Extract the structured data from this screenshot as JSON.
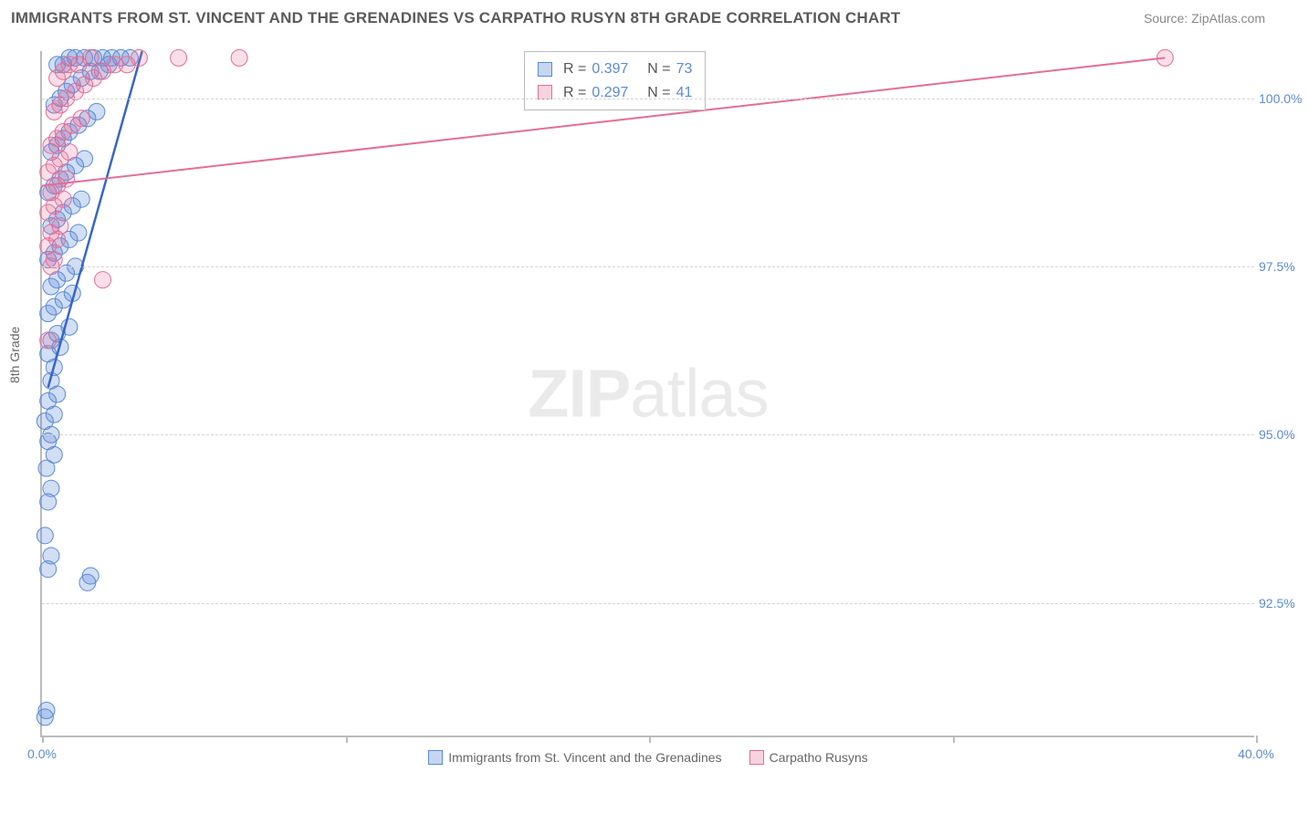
{
  "header": {
    "title": "IMMIGRANTS FROM ST. VINCENT AND THE GRENADINES VS CARPATHO RUSYN 8TH GRADE CORRELATION CHART",
    "source_label": "Source: ",
    "source_value": "ZipAtlas.com"
  },
  "watermark": {
    "part1": "ZIP",
    "part2": "atlas"
  },
  "chart": {
    "type": "scatter",
    "ylabel": "8th Grade",
    "xlim": [
      0,
      40
    ],
    "ylim": [
      90.5,
      100.7
    ],
    "x_ticks": [
      {
        "v": 0,
        "label": "0.0%"
      },
      {
        "v": 10,
        "label": ""
      },
      {
        "v": 20,
        "label": ""
      },
      {
        "v": 30,
        "label": ""
      },
      {
        "v": 40,
        "label": "40.0%"
      }
    ],
    "y_ticks": [
      {
        "v": 92.5,
        "label": "92.5%"
      },
      {
        "v": 95.0,
        "label": "95.0%"
      },
      {
        "v": 97.5,
        "label": "97.5%"
      },
      {
        "v": 100.0,
        "label": "100.0%"
      }
    ],
    "grid_color": "#d5d5d5",
    "axis_color": "#bbbbbb",
    "background_color": "#ffffff",
    "series": [
      {
        "id": "svg",
        "label": "Immigrants from St. Vincent and the Grenadines",
        "color_fill": "rgba(90,138,214,0.28)",
        "color_stroke": "#5a8ad6",
        "marker_radius": 9,
        "stats": {
          "R": "0.397",
          "N": "73"
        },
        "trend": {
          "x1": 0.2,
          "y1": 95.7,
          "x2": 3.3,
          "y2": 100.7
        },
        "points": [
          [
            0.1,
            90.8
          ],
          [
            0.15,
            90.9
          ],
          [
            0.2,
            93.0
          ],
          [
            0.3,
            93.2
          ],
          [
            0.1,
            93.5
          ],
          [
            0.2,
            94.0
          ],
          [
            0.3,
            94.2
          ],
          [
            0.15,
            94.5
          ],
          [
            0.4,
            94.7
          ],
          [
            0.2,
            94.9
          ],
          [
            0.3,
            95.0
          ],
          [
            0.1,
            95.2
          ],
          [
            0.4,
            95.3
          ],
          [
            0.2,
            95.5
          ],
          [
            0.5,
            95.6
          ],
          [
            0.3,
            95.8
          ],
          [
            1.5,
            92.8
          ],
          [
            1.6,
            92.9
          ],
          [
            0.4,
            96.0
          ],
          [
            0.2,
            96.2
          ],
          [
            0.6,
            96.3
          ],
          [
            0.3,
            96.4
          ],
          [
            0.5,
            96.5
          ],
          [
            0.9,
            96.6
          ],
          [
            0.2,
            96.8
          ],
          [
            0.4,
            96.9
          ],
          [
            0.7,
            97.0
          ],
          [
            1.0,
            97.1
          ],
          [
            0.3,
            97.2
          ],
          [
            0.5,
            97.3
          ],
          [
            0.8,
            97.4
          ],
          [
            1.1,
            97.5
          ],
          [
            0.2,
            97.6
          ],
          [
            0.4,
            97.7
          ],
          [
            0.6,
            97.8
          ],
          [
            0.9,
            97.9
          ],
          [
            1.2,
            98.0
          ],
          [
            0.3,
            98.1
          ],
          [
            0.5,
            98.2
          ],
          [
            0.7,
            98.3
          ],
          [
            1.0,
            98.4
          ],
          [
            1.3,
            98.5
          ],
          [
            0.2,
            98.6
          ],
          [
            0.4,
            98.7
          ],
          [
            0.6,
            98.8
          ],
          [
            0.8,
            98.9
          ],
          [
            1.1,
            99.0
          ],
          [
            1.4,
            99.1
          ],
          [
            0.3,
            99.2
          ],
          [
            0.5,
            99.3
          ],
          [
            0.7,
            99.4
          ],
          [
            0.9,
            99.5
          ],
          [
            1.2,
            99.6
          ],
          [
            1.5,
            99.7
          ],
          [
            1.8,
            99.8
          ],
          [
            0.4,
            99.9
          ],
          [
            0.6,
            100.0
          ],
          [
            0.8,
            100.1
          ],
          [
            1.0,
            100.2
          ],
          [
            1.3,
            100.3
          ],
          [
            1.6,
            100.4
          ],
          [
            1.9,
            100.4
          ],
          [
            2.2,
            100.5
          ],
          [
            0.5,
            100.5
          ],
          [
            0.7,
            100.5
          ],
          [
            0.9,
            100.6
          ],
          [
            1.1,
            100.6
          ],
          [
            1.4,
            100.6
          ],
          [
            1.7,
            100.6
          ],
          [
            2.0,
            100.6
          ],
          [
            2.3,
            100.6
          ],
          [
            2.6,
            100.6
          ],
          [
            2.9,
            100.6
          ]
        ]
      },
      {
        "id": "cr",
        "label": "Carpatho Rusyns",
        "color_fill": "rgba(230,110,150,0.22)",
        "color_stroke": "#e36e96",
        "marker_radius": 9,
        "stats": {
          "R": "0.297",
          "N": "41"
        },
        "trend": {
          "x1": 0.0,
          "y1": 98.7,
          "x2": 37.0,
          "y2": 100.6
        },
        "points": [
          [
            0.2,
            96.4
          ],
          [
            0.3,
            97.5
          ],
          [
            0.4,
            97.6
          ],
          [
            0.2,
            97.8
          ],
          [
            0.5,
            97.9
          ],
          [
            0.3,
            98.0
          ],
          [
            0.6,
            98.1
          ],
          [
            0.2,
            98.3
          ],
          [
            0.4,
            98.4
          ],
          [
            0.7,
            98.5
          ],
          [
            0.3,
            98.6
          ],
          [
            0.5,
            98.7
          ],
          [
            0.8,
            98.8
          ],
          [
            0.2,
            98.9
          ],
          [
            0.4,
            99.0
          ],
          [
            0.6,
            99.1
          ],
          [
            0.9,
            99.2
          ],
          [
            0.3,
            99.3
          ],
          [
            0.5,
            99.4
          ],
          [
            0.7,
            99.5
          ],
          [
            1.0,
            99.6
          ],
          [
            1.3,
            99.7
          ],
          [
            0.4,
            99.8
          ],
          [
            0.6,
            99.9
          ],
          [
            0.8,
            100.0
          ],
          [
            1.1,
            100.1
          ],
          [
            1.4,
            100.2
          ],
          [
            1.7,
            100.3
          ],
          [
            0.5,
            100.3
          ],
          [
            2.0,
            100.4
          ],
          [
            0.7,
            100.4
          ],
          [
            2.4,
            100.5
          ],
          [
            0.9,
            100.5
          ],
          [
            2.8,
            100.5
          ],
          [
            1.2,
            100.5
          ],
          [
            3.2,
            100.6
          ],
          [
            1.6,
            100.6
          ],
          [
            4.5,
            100.6
          ],
          [
            6.5,
            100.6
          ],
          [
            2.0,
            97.3
          ],
          [
            37.0,
            100.6
          ]
        ]
      }
    ],
    "legend_stats_labels": {
      "R": "R =",
      "N": "N ="
    }
  },
  "legend_bottom": {
    "items": [
      {
        "swatch_fill": "rgba(90,138,214,0.35)",
        "swatch_border": "#5a8ad6",
        "bind": "chart.series.0.label"
      },
      {
        "swatch_fill": "rgba(230,110,150,0.3)",
        "swatch_border": "#e36e96",
        "bind": "chart.series.1.label"
      }
    ]
  }
}
